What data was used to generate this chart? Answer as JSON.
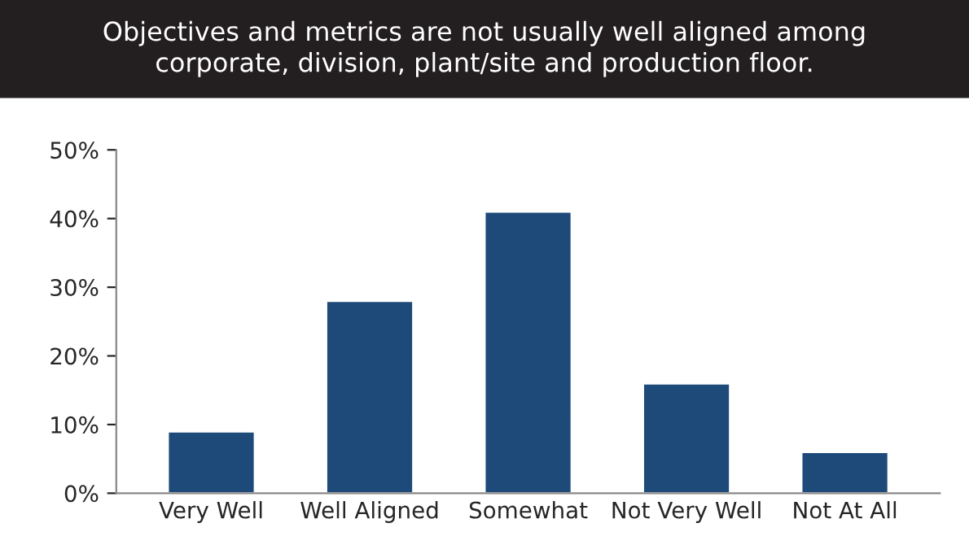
{
  "chart_data": {
    "type": "bar",
    "title": "Objectives and metrics are not usually well aligned among\ncorporate, division, plant/site and production floor.",
    "categories": [
      "Very Well",
      "Well Aligned",
      "Somewhat",
      "Not Very Well",
      "Not At All"
    ],
    "values": [
      9,
      28,
      41,
      16,
      6
    ],
    "color": "#1d4a78",
    "ylim": [
      0,
      50
    ],
    "yticks": [
      {
        "value": 0,
        "label": "0%"
      },
      {
        "value": 10,
        "label": "10%"
      },
      {
        "value": 20,
        "label": "20%"
      },
      {
        "value": 30,
        "label": "30%"
      },
      {
        "value": 40,
        "label": "40%"
      },
      {
        "value": 50,
        "label": "50%"
      }
    ],
    "grid": false,
    "legend": false
  }
}
